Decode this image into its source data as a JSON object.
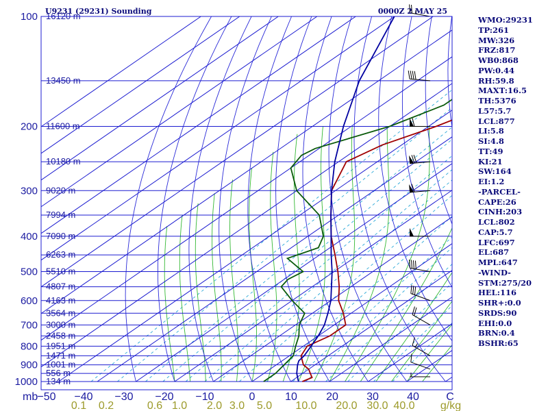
{
  "header": {
    "station": "U9231 (29231) Sounding",
    "datetime": "0000Z  2 MAY 25"
  },
  "colors": {
    "isobar": "#1b1bd0",
    "dry_adiabat": "#2a2ad8",
    "moist_adiabat": "#33b833",
    "mixing_ratio": "#2aa8d8",
    "temperature": "#a00000",
    "dewpoint": "#0a5a0a",
    "parcel": "#0000a0",
    "wind": "#000000",
    "label": "#1a1aa0",
    "mixing_label": "#9c9a2a"
  },
  "chart_data": {
    "type": "line",
    "xlabel": "°C",
    "ylabel": "mb",
    "pressure_ticks": [
      "100",
      "200",
      "300",
      "400",
      "500",
      "600",
      "700",
      "800",
      "900",
      "1000"
    ],
    "temp_ticks": [
      "−50",
      "−40",
      "−30",
      "−20",
      "−10",
      "0",
      "10",
      "20",
      "30",
      "40",
      "C"
    ],
    "mixing_ticks": [
      "0.1",
      "0.2",
      "0.6",
      "1.0",
      "2.0",
      "3.0",
      "5.0",
      "10.0",
      "20.0",
      "30.0",
      "40.0",
      "g/kg"
    ],
    "heights": [
      {
        "p": 100,
        "label": "16120 m"
      },
      {
        "p": 150,
        "label": "13450 m"
      },
      {
        "p": 200,
        "label": "11600 m"
      },
      {
        "p": 250,
        "label": "10180 m"
      },
      {
        "p": 300,
        "label": "9020 m"
      },
      {
        "p": 350,
        "label": "7994 m"
      },
      {
        "p": 400,
        "label": "7090 m"
      },
      {
        "p": 450,
        "label": "6263 m"
      },
      {
        "p": 500,
        "label": "5510 m"
      },
      {
        "p": 550,
        "label": "4807 m"
      },
      {
        "p": 600,
        "label": "4163 m"
      },
      {
        "p": 650,
        "label": "3564 m"
      },
      {
        "p": 700,
        "label": "3000 m"
      },
      {
        "p": 750,
        "label": "2458 m"
      },
      {
        "p": 800,
        "label": "1951 m"
      },
      {
        "p": 850,
        "label": "1471 m"
      },
      {
        "p": 900,
        "label": "1001 m"
      },
      {
        "p": 950,
        "label": "556 m"
      },
      {
        "p": 1000,
        "label": "134 m"
      }
    ],
    "series": [
      {
        "key": "temperature",
        "points": [
          [
            1000,
            13
          ],
          [
            975,
            14
          ],
          [
            950,
            12
          ],
          [
            925,
            10
          ],
          [
            900,
            7
          ],
          [
            850,
            3
          ],
          [
            800,
            1
          ],
          [
            750,
            3
          ],
          [
            700,
            3
          ],
          [
            650,
            -2
          ],
          [
            600,
            -8
          ],
          [
            550,
            -13
          ],
          [
            500,
            -19
          ],
          [
            450,
            -26
          ],
          [
            400,
            -34
          ],
          [
            350,
            -42
          ],
          [
            300,
            -51
          ],
          [
            250,
            -58
          ],
          [
            225,
            -55
          ],
          [
            200,
            -48
          ],
          [
            175,
            -42
          ],
          [
            150,
            -44
          ],
          [
            125,
            -40
          ],
          [
            100,
            -36
          ]
        ]
      },
      {
        "key": "dewpoint",
        "points": [
          [
            1000,
            3
          ],
          [
            950,
            3
          ],
          [
            900,
            2
          ],
          [
            850,
            1
          ],
          [
            800,
            -2
          ],
          [
            750,
            -5
          ],
          [
            700,
            -9
          ],
          [
            650,
            -12
          ],
          [
            600,
            -20
          ],
          [
            550,
            -28
          ],
          [
            525,
            -29
          ],
          [
            500,
            -28
          ],
          [
            460,
            -37
          ],
          [
            430,
            -33
          ],
          [
            400,
            -36
          ],
          [
            350,
            -45
          ],
          [
            300,
            -60
          ],
          [
            260,
            -70
          ],
          [
            240,
            -72
          ],
          [
            230,
            -71
          ],
          [
            200,
            -60
          ],
          [
            175,
            -54
          ],
          [
            150,
            -54
          ],
          [
            130,
            -59
          ],
          [
            100,
            -73
          ]
        ]
      },
      {
        "key": "parcel",
        "points": [
          [
            1000,
            12
          ],
          [
            950,
            8.5
          ],
          [
            900,
            5.5
          ],
          [
            877,
            4.3
          ],
          [
            850,
            3.8
          ],
          [
            800,
            2
          ],
          [
            750,
            0
          ],
          [
            700,
            -2.5
          ],
          [
            650,
            -6
          ],
          [
            600,
            -10
          ],
          [
            550,
            -15
          ],
          [
            500,
            -20.5
          ],
          [
            450,
            -27
          ],
          [
            400,
            -34
          ],
          [
            350,
            -42
          ],
          [
            300,
            -51
          ],
          [
            250,
            -61
          ],
          [
            200,
            -72
          ],
          [
            150,
            -85
          ],
          [
            100,
            -100
          ]
        ]
      }
    ],
    "winds": [
      {
        "p": 970,
        "dir": 270,
        "spd": 5
      },
      {
        "p": 925,
        "dir": 290,
        "spd": 10
      },
      {
        "p": 850,
        "dir": 300,
        "spd": 15
      },
      {
        "p": 700,
        "dir": 300,
        "spd": 20
      },
      {
        "p": 600,
        "dir": 290,
        "spd": 30
      },
      {
        "p": 500,
        "dir": 280,
        "spd": 40
      },
      {
        "p": 400,
        "dir": 270,
        "spd": 50
      },
      {
        "p": 300,
        "dir": 265,
        "spd": 60
      },
      {
        "p": 250,
        "dir": 265,
        "spd": 70
      },
      {
        "p": 200,
        "dir": 270,
        "spd": 60
      },
      {
        "p": 150,
        "dir": 275,
        "spd": 40
      },
      {
        "p": 100,
        "dir": 280,
        "spd": 25
      }
    ]
  },
  "indices": [
    "WMO:29231",
    "TP:261",
    "MW:326",
    "FRZ:817",
    "WB0:868",
    "PW:0.44",
    "RH:59.8",
    "MAXT:16.5",
    "TH:5376",
    "L57:5.7",
    "LCL:877",
    "LI:5.8",
    "SI:4.8",
    "TT:49",
    "KI:21",
    "SW:164",
    "EI:1.2",
    "-PARCEL-",
    "CAPE:26",
    "CINH:203",
    "LCL:802",
    "CAP:5.7",
    "LFC:697",
    "EL:687",
    "MPL:647",
    "-WIND-",
    "STM:275/20",
    "HEL:116",
    "SHR+:0.0",
    "SRDS:90",
    "EHI:0.0",
    "BRN:0.4",
    "BSHR:65"
  ]
}
